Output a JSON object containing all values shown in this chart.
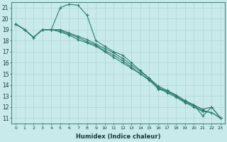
{
  "xlabel": "Humidex (Indice chaleur)",
  "background_color": "#c8eaea",
  "line_color": "#2e7d70",
  "grid_color": "#b0d4d4",
  "xlim": [
    -0.5,
    23.5
  ],
  "ylim": [
    10.5,
    21.5
  ],
  "xticks": [
    0,
    1,
    2,
    3,
    4,
    5,
    6,
    7,
    8,
    9,
    10,
    11,
    12,
    13,
    14,
    15,
    16,
    17,
    18,
    19,
    20,
    21,
    22,
    23
  ],
  "yticks": [
    11,
    12,
    13,
    14,
    15,
    16,
    17,
    18,
    19,
    20,
    21
  ],
  "series": [
    [
      19.5,
      19.0,
      18.3,
      19.0,
      19.0,
      21.0,
      21.3,
      21.2,
      20.3,
      18.0,
      17.5,
      17.0,
      16.7,
      16.0,
      15.3,
      14.6,
      13.6,
      13.5,
      13.0,
      12.5,
      12.2,
      11.2,
      12.0,
      11.0
    ],
    [
      19.5,
      19.0,
      18.3,
      19.0,
      19.0,
      19.0,
      18.7,
      18.4,
      18.1,
      17.7,
      17.3,
      16.9,
      16.4,
      15.8,
      15.2,
      14.6,
      13.9,
      13.5,
      13.1,
      12.6,
      12.2,
      11.8,
      12.0,
      11.0
    ],
    [
      19.5,
      19.0,
      18.3,
      19.0,
      19.0,
      18.9,
      18.6,
      18.3,
      17.9,
      17.6,
      17.1,
      16.7,
      16.2,
      15.6,
      15.0,
      14.5,
      13.8,
      13.4,
      13.0,
      12.5,
      12.1,
      11.7,
      11.5,
      11.0
    ],
    [
      19.5,
      19.0,
      18.3,
      19.0,
      19.0,
      18.8,
      18.5,
      18.1,
      17.8,
      17.5,
      17.0,
      16.5,
      16.0,
      15.5,
      15.0,
      14.4,
      13.7,
      13.3,
      12.9,
      12.4,
      12.0,
      11.6,
      11.5,
      11.0
    ]
  ]
}
